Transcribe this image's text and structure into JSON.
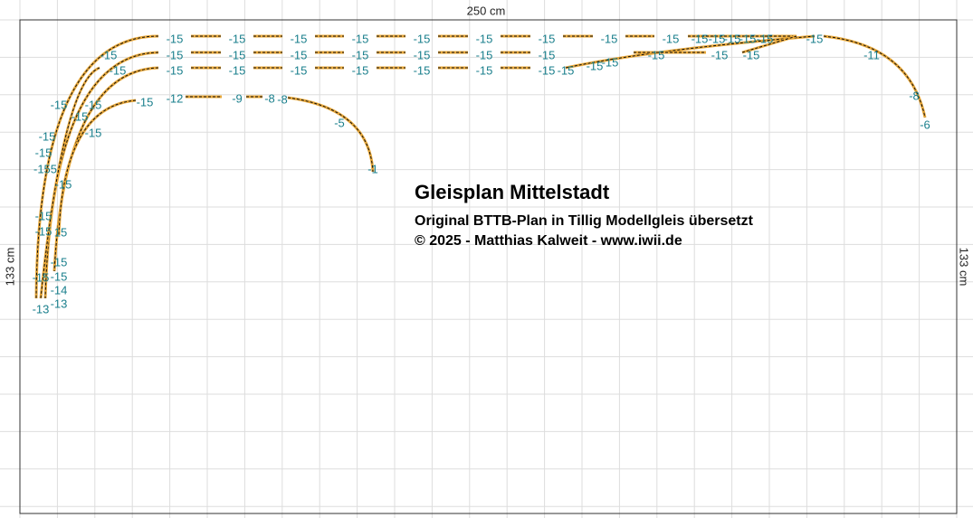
{
  "header": {
    "title": "Gleisplan Mittelstadt",
    "subtitle": "Original BTTB-Plan in Tillig Modellgleis übersetzt",
    "copyright": "© 2025 - Matthias Kalweit - www.iwii.de"
  },
  "dimensions": {
    "width": "250 cm",
    "height_left": "133 cm",
    "height_right": "133 cm"
  },
  "track_labels": [
    "-15",
    "-15",
    "-15",
    "-15",
    "-15",
    "-15",
    "-15",
    "-15",
    "-15",
    "-15",
    "-15",
    "-15",
    "-15",
    "-15",
    "-15",
    "-15",
    "-15",
    "-15",
    "-15",
    "-15",
    "-15",
    "-15",
    "-15",
    "-15",
    "-15",
    "-15",
    "-11",
    "-15",
    "-15",
    "-15",
    "-15",
    "-15",
    "-15",
    "-15",
    "-15",
    "-15",
    "-15",
    "-15",
    "-15",
    "-12",
    "-9",
    "-8",
    "-8",
    "-8",
    "-6",
    "-5",
    "-1",
    "-15",
    "-15",
    "-15",
    "-15",
    "-15",
    "-15",
    "-155",
    "-15",
    "-15",
    "-15",
    "15",
    "-15",
    "-15",
    "-15",
    "-14",
    "-13",
    "-13"
  ]
}
